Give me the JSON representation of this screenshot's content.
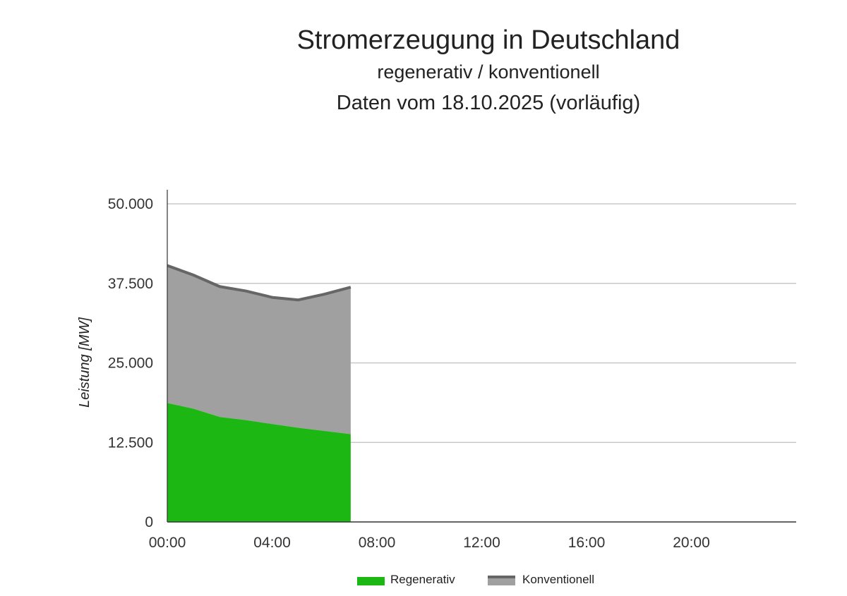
{
  "chart_data": {
    "type": "area",
    "stacked": true,
    "title": "Stromerzeugung in Deutschland",
    "subtitle": "regenerativ / konventionell",
    "subtitle2": "Daten vom 18.10.2025 (vorläufig)",
    "ylabel": "Leistung [MW]",
    "xlabel": "",
    "ylim": [
      0,
      50000
    ],
    "xlim_hours": [
      0,
      24
    ],
    "yticks": [
      {
        "value": 0,
        "label": "0"
      },
      {
        "value": 12500,
        "label": "12.500"
      },
      {
        "value": 25000,
        "label": "25.000"
      },
      {
        "value": 37500,
        "label": "37.500"
      },
      {
        "value": 50000,
        "label": "50.000"
      }
    ],
    "xticks": [
      {
        "hour": 0,
        "label": "00:00"
      },
      {
        "hour": 4,
        "label": "04:00"
      },
      {
        "hour": 8,
        "label": "08:00"
      },
      {
        "hour": 12,
        "label": "12:00"
      },
      {
        "hour": 16,
        "label": "16:00"
      },
      {
        "hour": 20,
        "label": "20:00"
      }
    ],
    "x": [
      "00:00",
      "01:00",
      "02:00",
      "03:00",
      "04:00",
      "05:00",
      "06:00",
      "07:00"
    ],
    "x_hours": [
      0,
      1,
      2,
      3,
      4,
      5,
      6,
      7
    ],
    "grid": true,
    "legend_position": "bottom",
    "series": [
      {
        "name": "Regenerativ",
        "color": "#1db714",
        "values": [
          18700,
          17800,
          16500,
          16000,
          15400,
          14800,
          14300,
          13800
        ]
      },
      {
        "name": "Konventionell",
        "color": "#a0a0a0",
        "line_color": "#666666",
        "values": [
          21600,
          21000,
          20500,
          20300,
          19900,
          20100,
          21500,
          23100
        ]
      }
    ]
  }
}
